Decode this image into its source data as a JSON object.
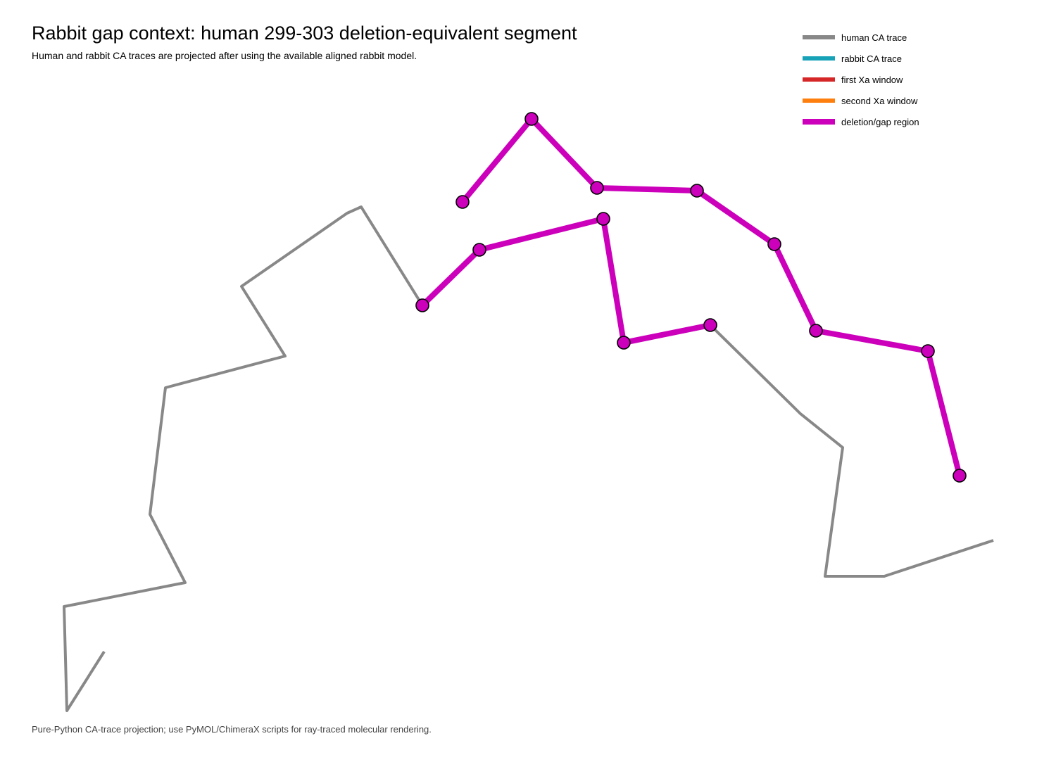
{
  "title": "Rabbit gap context: human 299-303 deletion-equivalent segment",
  "subtitle": "Human and rabbit CA traces are projected after using the available aligned rabbit model.",
  "legend": [
    {
      "label": "human CA trace",
      "color": "#888888"
    },
    {
      "label": "rabbit CA trace",
      "color": "#17a2b8"
    },
    {
      "label": "first Xa window",
      "color": "#d62728"
    },
    {
      "label": "second Xa window",
      "color": "#ff7f0e"
    },
    {
      "label": "deletion/gap region",
      "color": "#cc00bb"
    }
  ],
  "footer": "Pure-Python CA-trace projection; use PyMOL/ChimeraX scripts for ray-traced molecular rendering."
}
